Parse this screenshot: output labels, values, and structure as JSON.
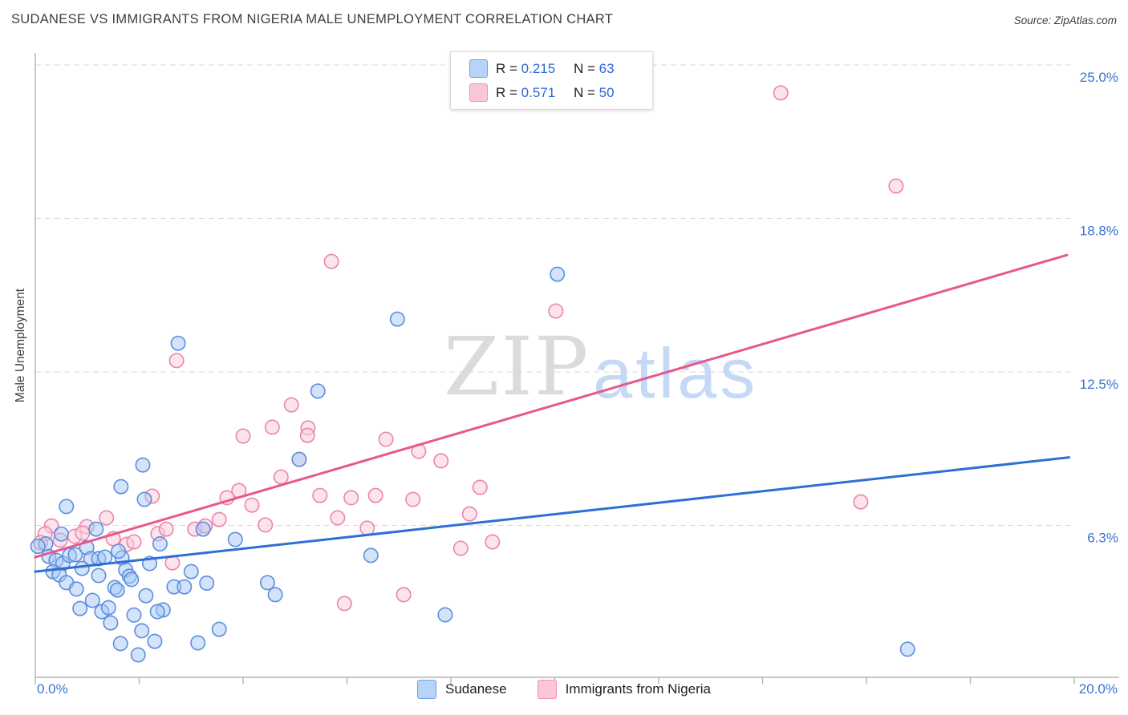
{
  "header": {
    "title": "SUDANESE VS IMMIGRANTS FROM NIGERIA MALE UNEMPLOYMENT CORRELATION CHART",
    "source": "Source: ZipAtlas.com"
  },
  "watermark": {
    "zip": "ZIP",
    "atlas": "atlas"
  },
  "y_axis_title": "Male Unemployment",
  "legend_box": {
    "rows": [
      {
        "series": "Sudanese",
        "r_prefix": "R = ",
        "r_value": "0.215",
        "n_prefix": "N = ",
        "n_value": "63"
      },
      {
        "series": "Immigrants from Nigeria",
        "r_prefix": "R = ",
        "r_value": "0.571",
        "n_prefix": "N = ",
        "n_value": "50"
      }
    ]
  },
  "bottom_legend": {
    "items": [
      {
        "label": "Sudanese"
      },
      {
        "label": "Immigrants from Nigeria"
      }
    ]
  },
  "x_axis": {
    "min_label": "0.0%",
    "max_label": "20.0%"
  },
  "chart_data": {
    "type": "scatter",
    "title": "Sudanese vs Immigrants from Nigeria Male Unemployment Correlation Chart",
    "xlabel": "",
    "ylabel": "Male Unemployment",
    "xlim": [
      0,
      20.9
    ],
    "ylim": [
      0,
      25.5
    ],
    "grid": "horizontal-dashed",
    "legend_position": "bottom-center",
    "axis_label_color": "#3b74d1",
    "grid_color": "#d9d9d9",
    "axis_color": "#b4b4b4",
    "x_ticks": {
      "min": 0,
      "max": 20,
      "step": 2
    },
    "y_ticks": [
      {
        "value": 25.0,
        "label": "25.0%"
      },
      {
        "value": 18.75,
        "label": "18.8%"
      },
      {
        "value": 12.5,
        "label": "12.5%"
      },
      {
        "value": 6.25,
        "label": "6.3%"
      }
    ],
    "series": [
      {
        "name": "Sudanese",
        "R": 0.215,
        "N": 63,
        "color": "#5c8fdd",
        "fill": "rgba(166,200,245,0.5)",
        "points": [
          [
            2.07,
            8.71
          ],
          [
            1.65,
            7.83
          ],
          [
            2.1,
            7.31
          ],
          [
            0.6,
            7.02
          ],
          [
            1.17,
            6.1
          ],
          [
            0.2,
            5.5
          ],
          [
            0.05,
            5.4
          ],
          [
            0.26,
            4.99
          ],
          [
            0.4,
            4.83
          ],
          [
            0.53,
            4.7
          ],
          [
            0.66,
            5.03
          ],
          [
            0.77,
            5.06
          ],
          [
            0.99,
            5.35
          ],
          [
            1.07,
            4.9
          ],
          [
            1.22,
            4.9
          ],
          [
            1.34,
            4.96
          ],
          [
            0.34,
            4.37
          ],
          [
            0.46,
            4.24
          ],
          [
            0.6,
            3.92
          ],
          [
            0.79,
            3.66
          ],
          [
            1.22,
            4.21
          ],
          [
            1.67,
            4.93
          ],
          [
            1.74,
            4.44
          ],
          [
            1.81,
            4.18
          ],
          [
            1.85,
            4.05
          ],
          [
            1.53,
            3.72
          ],
          [
            1.58,
            3.62
          ],
          [
            0.86,
            2.87
          ],
          [
            1.28,
            2.74
          ],
          [
            1.41,
            2.9
          ],
          [
            1.45,
            2.28
          ],
          [
            2.05,
            1.96
          ],
          [
            1.64,
            1.44
          ],
          [
            1.98,
            0.98
          ],
          [
            2.3,
            1.53
          ],
          [
            3.13,
            1.47
          ],
          [
            3.54,
            2.02
          ],
          [
            2.13,
            3.39
          ],
          [
            2.67,
            3.75
          ],
          [
            2.87,
            3.75
          ],
          [
            3.0,
            4.37
          ],
          [
            3.23,
            6.1
          ],
          [
            3.85,
            5.68
          ],
          [
            2.46,
            2.81
          ],
          [
            2.35,
            2.74
          ],
          [
            4.47,
            3.92
          ],
          [
            4.62,
            3.43
          ],
          [
            0.9,
            4.5
          ],
          [
            1.1,
            3.2
          ],
          [
            1.6,
            5.2
          ],
          [
            2.2,
            4.7
          ],
          [
            2.4,
            5.5
          ],
          [
            0.5,
            5.9
          ],
          [
            1.9,
            2.6
          ],
          [
            3.3,
            3.9
          ],
          [
            2.75,
            13.67
          ],
          [
            5.44,
            11.72
          ],
          [
            6.97,
            14.65
          ],
          [
            10.05,
            16.48
          ],
          [
            16.79,
            1.21
          ],
          [
            6.46,
            5.03
          ],
          [
            7.89,
            2.61
          ],
          [
            5.08,
            8.94
          ]
        ]
      },
      {
        "name": "Immigrants from Nigeria",
        "R": 0.571,
        "N": 50,
        "color": "#ec85ab",
        "fill": "rgba(250,206,221,0.55)",
        "points": [
          [
            0.31,
            6.23
          ],
          [
            0.19,
            5.91
          ],
          [
            0.99,
            6.2
          ],
          [
            1.37,
            6.56
          ],
          [
            0.48,
            5.65
          ],
          [
            0.76,
            5.81
          ],
          [
            1.5,
            5.71
          ],
          [
            1.76,
            5.48
          ],
          [
            1.9,
            5.58
          ],
          [
            2.36,
            5.91
          ],
          [
            2.52,
            6.1
          ],
          [
            3.07,
            6.1
          ],
          [
            3.27,
            6.23
          ],
          [
            3.54,
            6.49
          ],
          [
            3.69,
            7.38
          ],
          [
            3.92,
            7.67
          ],
          [
            4.17,
            7.08
          ],
          [
            4.43,
            6.27
          ],
          [
            4.73,
            8.22
          ],
          [
            0.91,
            5.94
          ],
          [
            2.25,
            7.44
          ],
          [
            2.64,
            4.73
          ],
          [
            0.1,
            5.55
          ],
          [
            2.72,
            12.96
          ],
          [
            4.93,
            11.16
          ],
          [
            4.56,
            10.25
          ],
          [
            4.0,
            9.89
          ],
          [
            5.25,
            10.22
          ],
          [
            5.7,
            17.0
          ],
          [
            14.35,
            23.86
          ],
          [
            16.57,
            20.07
          ],
          [
            10.02,
            14.98
          ],
          [
            6.75,
            9.76
          ],
          [
            7.38,
            9.27
          ],
          [
            7.81,
            8.88
          ],
          [
            8.56,
            7.8
          ],
          [
            5.48,
            7.47
          ],
          [
            6.08,
            7.38
          ],
          [
            6.55,
            7.47
          ],
          [
            7.27,
            7.31
          ],
          [
            8.36,
            6.72
          ],
          [
            5.82,
            6.56
          ],
          [
            6.39,
            6.14
          ],
          [
            8.19,
            5.32
          ],
          [
            8.8,
            5.58
          ],
          [
            7.09,
            3.43
          ],
          [
            5.95,
            3.07
          ],
          [
            15.89,
            7.21
          ],
          [
            5.24,
            9.92
          ],
          [
            5.08,
            8.94
          ]
        ]
      }
    ],
    "trend_lines": [
      {
        "series": "Immigrants from Nigeria",
        "color": "#e8578d",
        "x1": 0,
        "y1": 4.96,
        "x2": 19.86,
        "y2": 17.26
      },
      {
        "series": "Sudanese",
        "color": "#2e6fd6",
        "x1": 0,
        "y1": 4.37,
        "x2": 19.9,
        "y2": 9.02
      }
    ]
  }
}
